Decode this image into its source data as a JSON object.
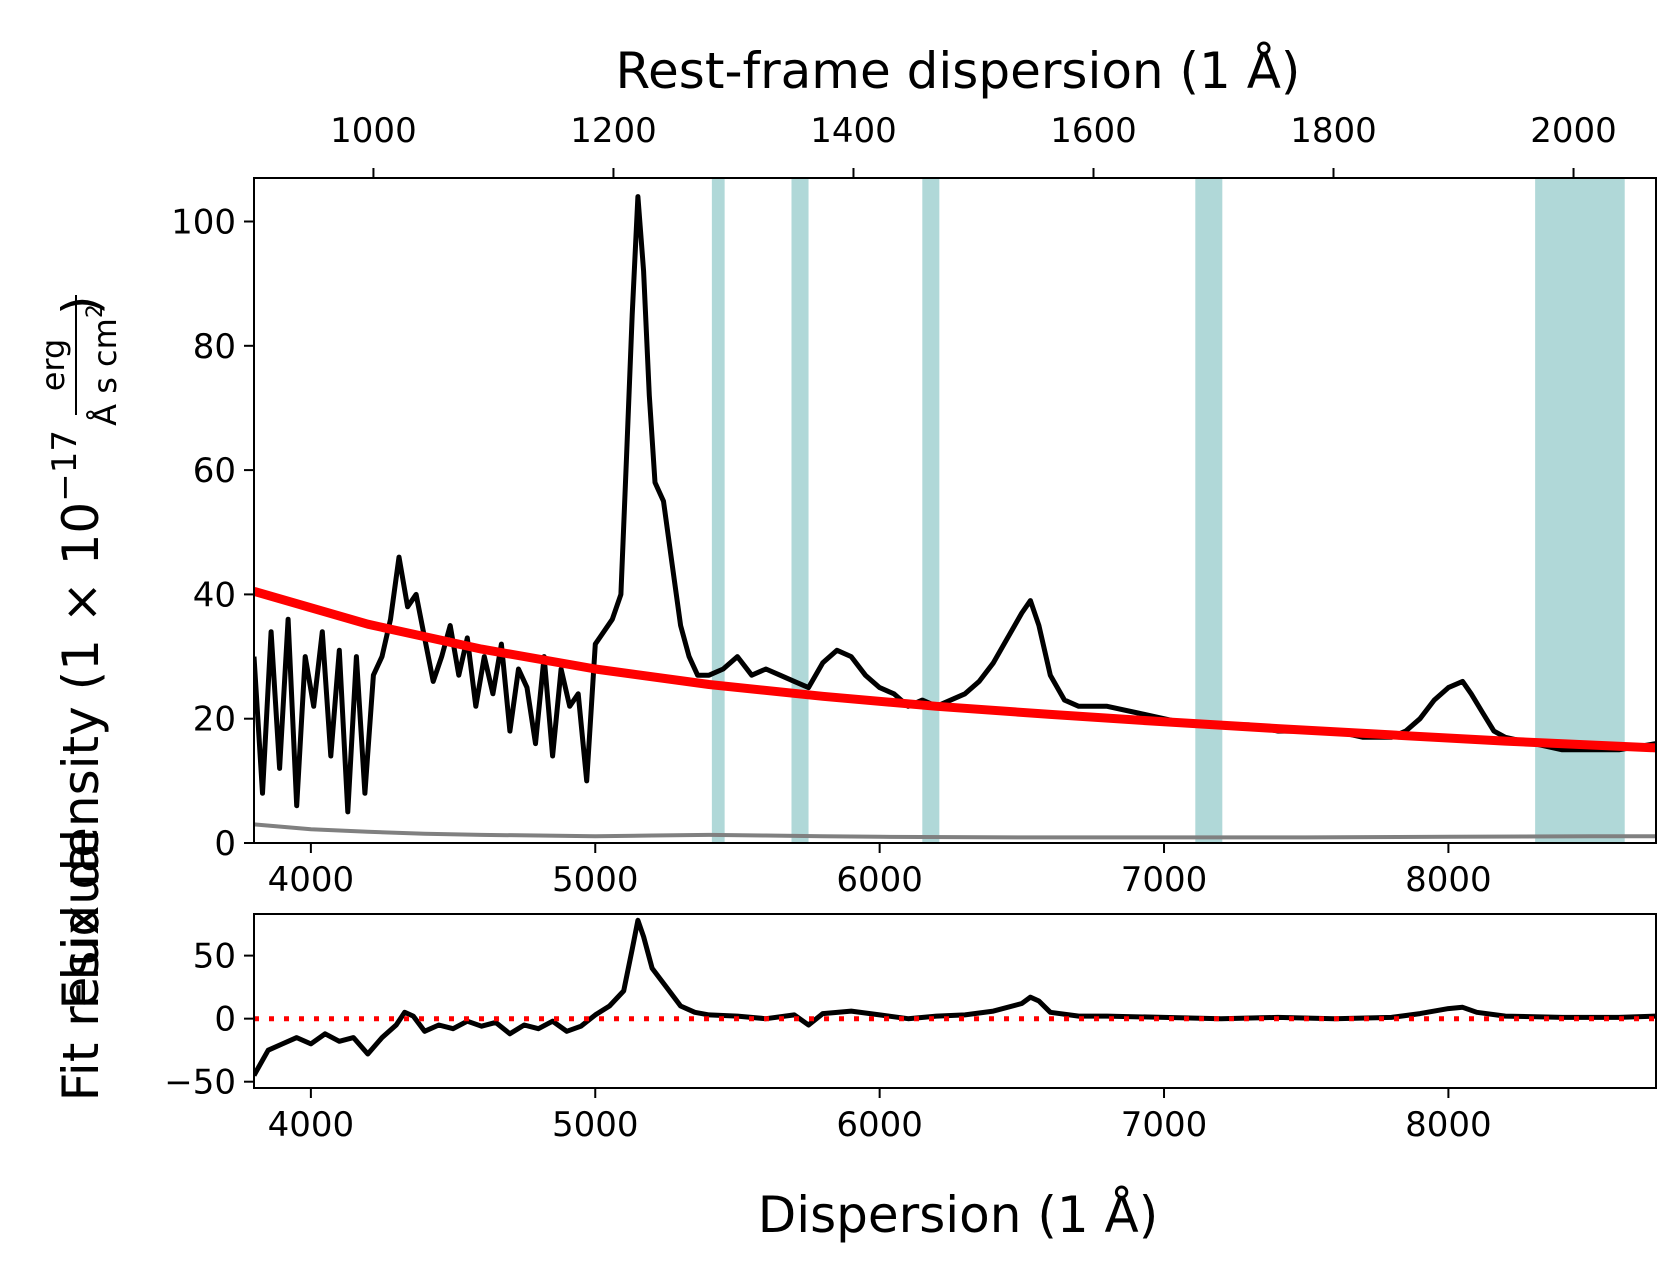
{
  "chart_data": [
    {
      "id": "main",
      "type": "line",
      "xlabel_top": "Rest-frame dispersion (1 Å)",
      "ylabel": "Flux density (1 × 10",
      "ylabel_exponent": "−17",
      "ylabel_unit_num": "erg",
      "ylabel_unit_den": "Å s cm",
      "ylabel_unit_den_exp": "2",
      "xlim": [
        3800,
        8730
      ],
      "ylim": [
        0,
        107
      ],
      "xticks": [
        4000,
        5000,
        6000,
        7000,
        8000
      ],
      "xtick_labels": [
        "4000",
        "5000",
        "6000",
        "7000",
        "8000"
      ],
      "yticks": [
        0,
        20,
        40,
        60,
        80,
        100
      ],
      "ytick_labels": [
        "0",
        "20",
        "40",
        "60",
        "80",
        "100"
      ],
      "top_axis": {
        "redshift": 3.22,
        "ticks": [
          1000,
          1200,
          1400,
          1600,
          1800,
          2000
        ],
        "tick_labels": [
          "1000",
          "1200",
          "1400",
          "1600",
          "1800",
          "2000"
        ]
      },
      "shaded_regions": [
        [
          5410,
          5455
        ],
        [
          5690,
          5750
        ],
        [
          6150,
          6210
        ],
        [
          7110,
          7205
        ],
        [
          8305,
          8620
        ]
      ],
      "shade_color": "#b0d8d8",
      "series": [
        {
          "role": "flux",
          "color": "#000000",
          "x": [
            3800,
            3830,
            3860,
            3890,
            3920,
            3950,
            3980,
            4010,
            4040,
            4070,
            4100,
            4130,
            4160,
            4190,
            4220,
            4250,
            4280,
            4310,
            4340,
            4370,
            4400,
            4430,
            4460,
            4490,
            4520,
            4550,
            4580,
            4610,
            4640,
            4670,
            4700,
            4730,
            4760,
            4790,
            4820,
            4850,
            4880,
            4910,
            4940,
            4970,
            5000,
            5030,
            5060,
            5090,
            5110,
            5130,
            5150,
            5170,
            5190,
            5210,
            5240,
            5270,
            5300,
            5330,
            5360,
            5400,
            5450,
            5500,
            5550,
            5600,
            5650,
            5700,
            5750,
            5800,
            5850,
            5900,
            5950,
            6000,
            6050,
            6100,
            6150,
            6200,
            6250,
            6300,
            6350,
            6400,
            6450,
            6500,
            6530,
            6560,
            6600,
            6650,
            6700,
            6800,
            6900,
            7000,
            7100,
            7200,
            7300,
            7400,
            7500,
            7600,
            7700,
            7800,
            7850,
            7900,
            7950,
            8000,
            8050,
            8080,
            8120,
            8160,
            8200,
            8300,
            8400,
            8500,
            8600,
            8730
          ],
          "y": [
            30,
            8,
            34,
            12,
            36,
            6,
            30,
            22,
            34,
            14,
            31,
            5,
            30,
            8,
            27,
            30,
            36,
            46,
            38,
            40,
            33,
            26,
            30,
            35,
            27,
            33,
            22,
            30,
            24,
            32,
            18,
            28,
            25,
            16,
            30,
            14,
            28,
            22,
            24,
            10,
            32,
            34,
            36,
            40,
            62,
            85,
            104,
            92,
            72,
            58,
            55,
            45,
            35,
            30,
            27,
            27,
            28,
            30,
            27,
            28,
            27,
            26,
            25,
            29,
            31,
            30,
            27,
            25,
            24,
            22,
            23,
            22,
            23,
            24,
            26,
            29,
            33,
            37,
            39,
            35,
            27,
            23,
            22,
            22,
            21,
            20,
            19,
            19,
            19,
            18,
            18,
            18,
            17,
            17,
            18,
            20,
            23,
            25,
            26,
            24,
            21,
            18,
            17,
            16,
            15,
            15,
            15,
            16
          ]
        },
        {
          "role": "error",
          "color": "#808080",
          "x": [
            3800,
            4000,
            4200,
            4400,
            4600,
            4800,
            5000,
            5200,
            5400,
            5600,
            5800,
            6000,
            6500,
            7000,
            7500,
            8000,
            8500,
            8730
          ],
          "y": [
            3,
            2.2,
            1.8,
            1.5,
            1.3,
            1.2,
            1.1,
            1.2,
            1.3,
            1.2,
            1.1,
            1.0,
            0.9,
            0.9,
            0.9,
            1.0,
            1.1,
            1.1
          ]
        },
        {
          "role": "continuum-fit",
          "color": "#ff0000",
          "x": [
            3800,
            4200,
            4600,
            5000,
            5400,
            5800,
            6200,
            6600,
            7000,
            7400,
            7800,
            8200,
            8730
          ],
          "y": [
            40.5,
            35.2,
            31.2,
            28.0,
            25.5,
            23.6,
            22.0,
            20.7,
            19.5,
            18.4,
            17.4,
            16.4,
            15.3
          ]
        }
      ]
    },
    {
      "id": "residual",
      "type": "line",
      "xlabel": "Dispersion (1 Å)",
      "ylabel": "Fit residual",
      "xlim": [
        3800,
        8730
      ],
      "ylim": [
        -55,
        83
      ],
      "xticks": [
        4000,
        5000,
        6000,
        7000,
        8000
      ],
      "xtick_labels": [
        "4000",
        "5000",
        "6000",
        "7000",
        "8000"
      ],
      "yticks": [
        -50,
        0,
        50
      ],
      "ytick_labels": [
        "−50",
        "0",
        "50"
      ],
      "series": [
        {
          "role": "residual",
          "color": "#000000",
          "x": [
            3800,
            3850,
            3900,
            3950,
            4000,
            4050,
            4100,
            4150,
            4200,
            4250,
            4300,
            4330,
            4360,
            4400,
            4450,
            4500,
            4550,
            4600,
            4650,
            4700,
            4750,
            4800,
            4850,
            4900,
            4950,
            5000,
            5050,
            5100,
            5130,
            5150,
            5170,
            5200,
            5250,
            5300,
            5350,
            5400,
            5500,
            5600,
            5700,
            5750,
            5800,
            5900,
            6000,
            6100,
            6200,
            6300,
            6400,
            6500,
            6530,
            6560,
            6600,
            6700,
            6800,
            7000,
            7200,
            7400,
            7600,
            7800,
            7900,
            8000,
            8050,
            8100,
            8200,
            8400,
            8600,
            8730
          ],
          "y": [
            -45,
            -25,
            -20,
            -15,
            -20,
            -12,
            -18,
            -15,
            -28,
            -15,
            -5,
            5,
            2,
            -10,
            -5,
            -8,
            -2,
            -6,
            -3,
            -12,
            -5,
            -8,
            -2,
            -10,
            -6,
            3,
            10,
            22,
            55,
            78,
            65,
            40,
            25,
            10,
            5,
            3,
            2,
            0,
            3,
            -5,
            4,
            6,
            3,
            0,
            2,
            3,
            6,
            12,
            17,
            14,
            5,
            2,
            2,
            1,
            0,
            1,
            0,
            1,
            4,
            8,
            9,
            5,
            2,
            1,
            1,
            2
          ]
        },
        {
          "role": "zero-line",
          "color": "#ff0000",
          "x": [
            3800,
            8730
          ],
          "y": [
            0,
            0
          ]
        }
      ]
    }
  ]
}
